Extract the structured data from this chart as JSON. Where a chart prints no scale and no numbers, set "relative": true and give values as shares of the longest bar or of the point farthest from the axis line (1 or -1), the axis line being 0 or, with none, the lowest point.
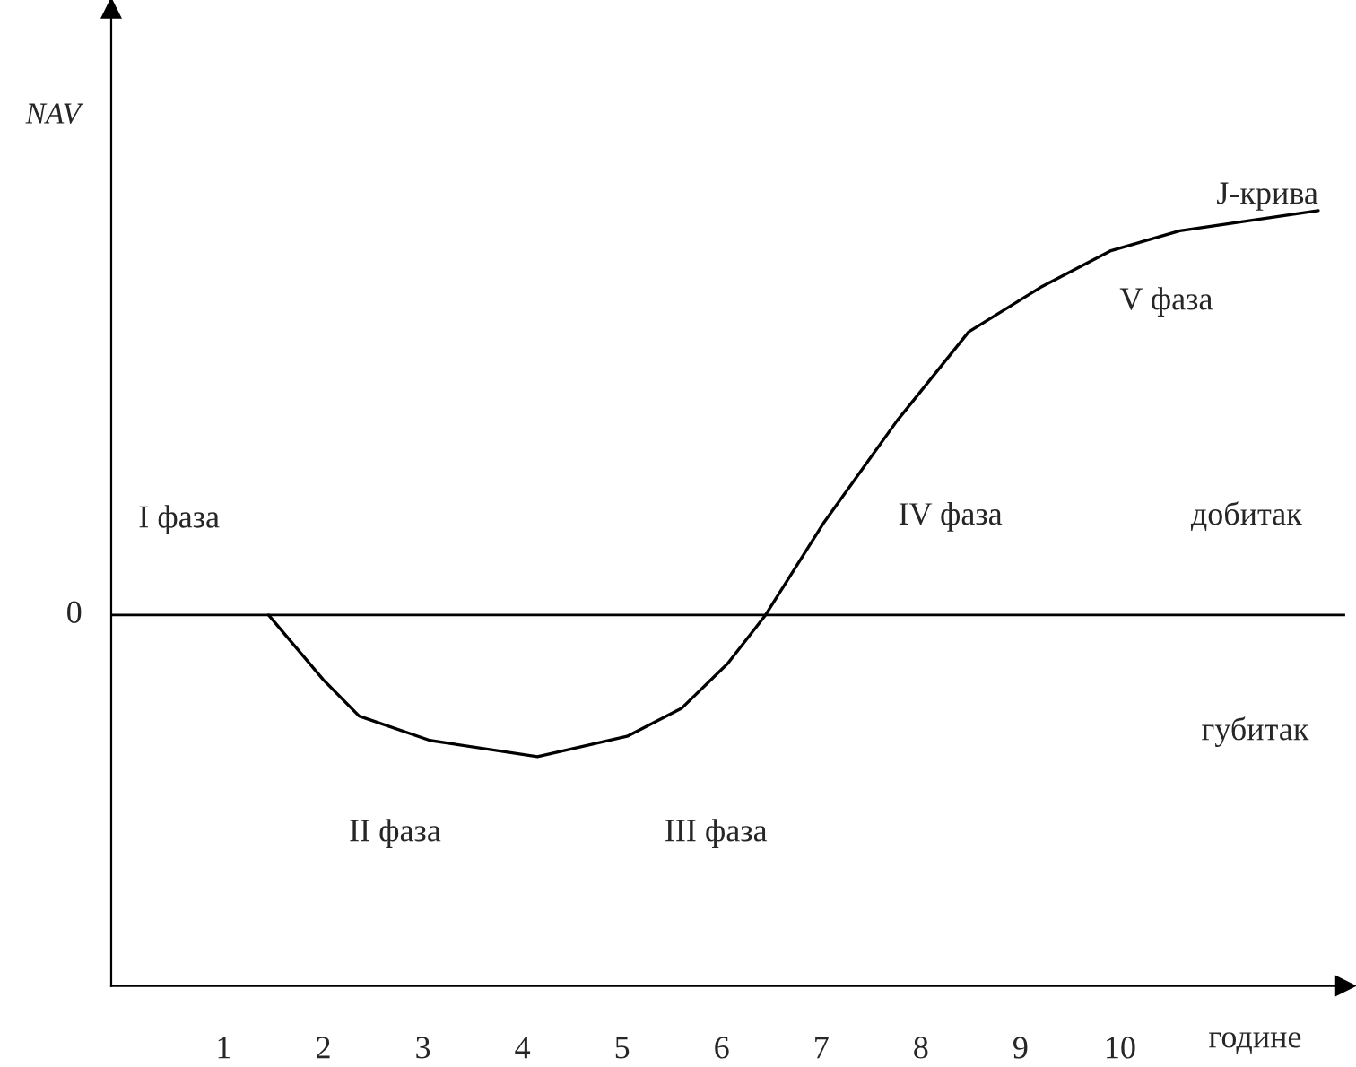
{
  "chart_data": {
    "type": "line",
    "relative": true,
    "xlabel": "године",
    "ylabel": "NAV",
    "xlim": [
      -0.13,
      12.26
    ],
    "xticks": [
      1,
      2,
      3,
      4,
      5,
      6,
      7,
      8,
      9,
      10
    ],
    "series": [
      {
        "color": "#000000",
        "x": [
          1.45,
          2.0,
          2.36,
          3.07,
          4.15,
          5.05,
          5.6,
          6.06,
          6.44,
          7.03,
          7.76,
          8.48,
          9.2,
          9.9,
          10.6,
          11.99
        ],
        "values": [
          0,
          -0.16,
          -0.25,
          -0.31,
          -0.35,
          -0.3,
          -0.23,
          -0.12,
          0,
          0.23,
          0.48,
          0.7,
          0.81,
          0.9,
          0.95,
          1.0
        ]
      }
    ],
    "ref_lines": [
      {
        "axis": "y",
        "value": 0,
        "label": "0",
        "color": "#000000"
      }
    ],
    "annotations": [
      "I фаза",
      "II фаза",
      "III фаза",
      "IV фаза",
      "V фаза",
      "добитак",
      "губитак",
      {
        "text": "J-крива",
        "x": 11.99,
        "y": 1.0
      }
    ],
    "grid": false,
    "legend": false,
    "marker": "none",
    "line_style": "solid"
  }
}
